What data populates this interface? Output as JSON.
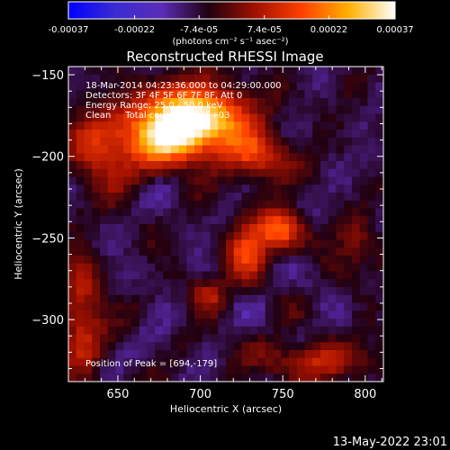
{
  "chart_data": {
    "type": "heatmap",
    "title": "Reconstructed RHESSI Image",
    "xlabel": "Heliocentric X (arcsec)",
    "ylabel": "Heliocentric Y (arcsec)",
    "xlim": [
      620,
      811
    ],
    "ylim": [
      -338,
      -145
    ],
    "xticks": [
      650,
      700,
      750,
      800
    ],
    "yticks": [
      -150,
      -200,
      -250,
      -300
    ],
    "colorbar": {
      "vmin": -0.00037,
      "vmax": 0.00037,
      "tick_values": [
        -0.00037,
        -0.00022,
        -7.4e-05,
        7.4e-05,
        0.00022,
        0.00037
      ],
      "tick_labels": [
        "-0.00037",
        "-0.00022",
        "-7.4e-05",
        "7.4e-05",
        "0.00022",
        "0.00037"
      ],
      "unit_label": "(photons cm⁻² s⁻¹ asec⁻²)"
    },
    "annotations": [
      "18-Mar-2014 04:23:36.000 to 04:29:00.000",
      "Detectors: 3F 4F 5F 6F 7F 8F, Att 0",
      "Energy Range: 25.0 - 50.0 keV",
      "Clean     Total counts: 1.54E+03"
    ],
    "peak_note": "Position of Peak = [694,-179]",
    "peak": [
      694,
      -179
    ],
    "sources": [
      {
        "x": 696,
        "y": -177,
        "sx": 22,
        "sy": 14,
        "amp": 1.0
      },
      {
        "x": 676,
        "y": -190,
        "sx": 16,
        "sy": 12,
        "amp": 0.55
      },
      {
        "x": 734,
        "y": -200,
        "sx": 14,
        "sy": 10,
        "amp": 0.45
      },
      {
        "x": 640,
        "y": -195,
        "sx": 14,
        "sy": 18,
        "amp": 0.38
      },
      {
        "x": 748,
        "y": -245,
        "sx": 10,
        "sy": 9,
        "amp": 0.55
      },
      {
        "x": 728,
        "y": -258,
        "sx": 9,
        "sy": 12,
        "amp": 0.45
      },
      {
        "x": 705,
        "y": -285,
        "sx": 8,
        "sy": 7,
        "amp": 0.3
      },
      {
        "x": 628,
        "y": -300,
        "sx": 9,
        "sy": 25,
        "amp": 0.4
      },
      {
        "x": 770,
        "y": -325,
        "sx": 25,
        "sy": 8,
        "amp": 0.35
      },
      {
        "x": 795,
        "y": -255,
        "sx": 10,
        "sy": 12,
        "amp": 0.22
      }
    ],
    "colormap": [
      "#0000ff",
      "#3a2bd2",
      "#5b2cb8",
      "#200010",
      "#a01000",
      "#ff4000",
      "#ffb000",
      "#ffffff"
    ]
  },
  "footer": {
    "date": "13-May-2022 23:01"
  }
}
